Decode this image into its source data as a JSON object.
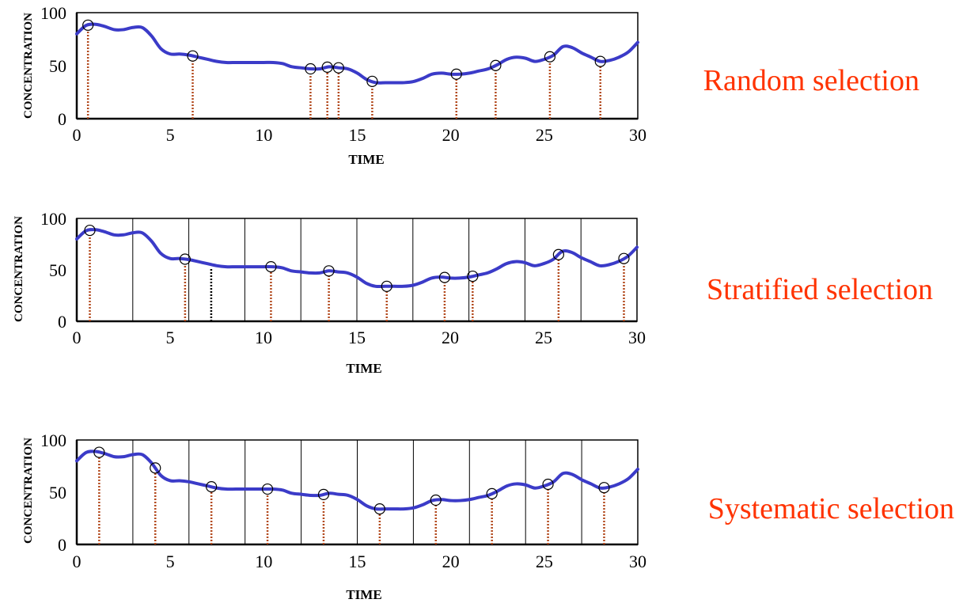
{
  "chart_data": [
    {
      "type": "line",
      "title": "",
      "xlabel": "TIME",
      "ylabel": "CONCENTRATION",
      "side_label": "Random selection",
      "xlim": [
        0,
        30
      ],
      "ylim": [
        0,
        100
      ],
      "x_ticks": [
        0,
        5,
        10,
        15,
        20,
        25,
        30
      ],
      "y_ticks": [
        0,
        50,
        100
      ],
      "strata_boundaries": [],
      "series": [
        {
          "x": [
            0,
            0.5,
            1,
            1.5,
            2,
            2.5,
            3,
            3.5,
            4,
            4.5,
            5,
            5.5,
            6,
            6.5,
            7,
            7.5,
            8,
            8.5,
            9,
            9.5,
            10,
            10.5,
            11,
            11.5,
            12,
            12.5,
            13,
            13.5,
            14,
            14.5,
            15,
            15.5,
            16,
            16.5,
            17,
            17.5,
            18,
            18.5,
            19,
            19.5,
            20,
            20.5,
            21,
            21.5,
            22,
            22.5,
            23,
            23.5,
            24,
            24.5,
            25,
            25.5,
            26,
            26.5,
            27,
            27.5,
            28,
            28.5,
            29,
            29.5,
            30
          ],
          "y": [
            80,
            88,
            89,
            87,
            84,
            84,
            86,
            86,
            78,
            66,
            61,
            61,
            60,
            58,
            56,
            54,
            53,
            53,
            53,
            53,
            53,
            53,
            52,
            49,
            48,
            47,
            47,
            49,
            48,
            47,
            43,
            37,
            34,
            34,
            34,
            34,
            35,
            38,
            42,
            43,
            42,
            42,
            43,
            45,
            47,
            51,
            56,
            58,
            57,
            54,
            56,
            60,
            68,
            67,
            62,
            58,
            54,
            55,
            58,
            63,
            72
          ]
        }
      ],
      "samples": [
        0.6,
        6.2,
        12.5,
        13.4,
        14.0,
        15.8,
        20.3,
        22.4,
        25.3,
        28.0
      ]
    },
    {
      "type": "line",
      "title": "",
      "xlabel": "TIME",
      "ylabel": "CONCENTRATION",
      "side_label": "Stratified selection",
      "xlim": [
        0,
        30
      ],
      "ylim": [
        0,
        100
      ],
      "x_ticks": [
        0,
        5,
        10,
        15,
        20,
        25,
        30
      ],
      "y_ticks": [
        0,
        50,
        100
      ],
      "strata_boundaries": [
        3,
        6,
        9,
        12,
        15,
        18,
        21,
        24,
        27
      ],
      "series": [
        {
          "x": [
            0,
            0.5,
            1,
            1.5,
            2,
            2.5,
            3,
            3.5,
            4,
            4.5,
            5,
            5.5,
            6,
            6.5,
            7,
            7.5,
            8,
            8.5,
            9,
            9.5,
            10,
            10.5,
            11,
            11.5,
            12,
            12.5,
            13,
            13.5,
            14,
            14.5,
            15,
            15.5,
            16,
            16.5,
            17,
            17.5,
            18,
            18.5,
            19,
            19.5,
            20,
            20.5,
            21,
            21.5,
            22,
            22.5,
            23,
            23.5,
            24,
            24.5,
            25,
            25.5,
            26,
            26.5,
            27,
            27.5,
            28,
            28.5,
            29,
            29.5,
            30
          ],
          "y": [
            80,
            88,
            89,
            87,
            84,
            84,
            86,
            86,
            78,
            66,
            61,
            61,
            60,
            58,
            56,
            54,
            53,
            53,
            53,
            53,
            53,
            53,
            52,
            49,
            48,
            47,
            47,
            49,
            48,
            47,
            43,
            37,
            34,
            34,
            34,
            34,
            35,
            38,
            42,
            43,
            42,
            42,
            43,
            45,
            47,
            51,
            56,
            58,
            57,
            54,
            56,
            60,
            68,
            67,
            62,
            58,
            54,
            55,
            58,
            63,
            72
          ]
        }
      ],
      "samples": [
        0.7,
        5.8,
        10.4,
        13.5,
        16.6,
        19.7,
        21.2,
        25.8,
        29.3
      ],
      "highlight_samples": [
        7.2
      ]
    },
    {
      "type": "line",
      "title": "",
      "xlabel": "TIME",
      "ylabel": "CONCENTRATION",
      "side_label": "Systematic selection",
      "xlim": [
        0,
        30
      ],
      "ylim": [
        0,
        100
      ],
      "x_ticks": [
        0,
        5,
        10,
        15,
        20,
        25,
        30
      ],
      "y_ticks": [
        0,
        50,
        100
      ],
      "strata_boundaries": [
        3,
        6,
        9,
        12,
        15,
        18,
        21,
        24,
        27
      ],
      "series": [
        {
          "x": [
            0,
            0.5,
            1,
            1.5,
            2,
            2.5,
            3,
            3.5,
            4,
            4.5,
            5,
            5.5,
            6,
            6.5,
            7,
            7.5,
            8,
            8.5,
            9,
            9.5,
            10,
            10.5,
            11,
            11.5,
            12,
            12.5,
            13,
            13.5,
            14,
            14.5,
            15,
            15.5,
            16,
            16.5,
            17,
            17.5,
            18,
            18.5,
            19,
            19.5,
            20,
            20.5,
            21,
            21.5,
            22,
            22.5,
            23,
            23.5,
            24,
            24.5,
            25,
            25.5,
            26,
            26.5,
            27,
            27.5,
            28,
            28.5,
            29,
            29.5,
            30
          ],
          "y": [
            80,
            88,
            89,
            87,
            84,
            84,
            86,
            86,
            78,
            66,
            61,
            61,
            60,
            58,
            56,
            54,
            53,
            53,
            53,
            53,
            53,
            53,
            52,
            49,
            48,
            47,
            47,
            49,
            48,
            47,
            43,
            37,
            34,
            34,
            34,
            34,
            35,
            38,
            42,
            43,
            42,
            42,
            43,
            45,
            47,
            51,
            56,
            58,
            57,
            54,
            56,
            60,
            68,
            67,
            62,
            58,
            54,
            55,
            58,
            63,
            72
          ]
        }
      ],
      "samples": [
        1.2,
        4.2,
        7.2,
        10.2,
        13.2,
        16.2,
        19.2,
        22.2,
        25.2,
        28.2
      ]
    }
  ],
  "colors": {
    "curve": "#3b3bc8",
    "sample_line": "#b34a1e",
    "highlight_line": "#000000",
    "side_label": "#ff3300"
  }
}
